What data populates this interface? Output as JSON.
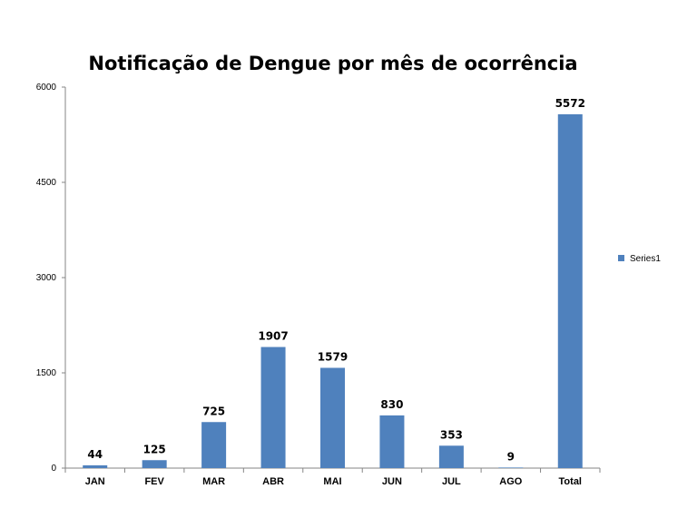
{
  "chart_data": {
    "type": "bar",
    "title": "Notificação de Dengue por mês de ocorrência",
    "categories": [
      "JAN",
      "FEV",
      "MAR",
      "ABR",
      "MAI",
      "JUN",
      "JUL",
      "AGO",
      "Total"
    ],
    "series": [
      {
        "name": "Series1",
        "values": [
          44,
          125,
          725,
          1907,
          1579,
          830,
          353,
          9,
          5572
        ]
      }
    ],
    "yticks": [
      "0",
      "1500",
      "3000",
      "4500",
      "6000"
    ],
    "ylim": [
      0,
      6000
    ],
    "grid": false,
    "legend_position": "right",
    "data_labels": true,
    "colors": {
      "bar": "#4F81BD",
      "axis": "#868686"
    }
  }
}
